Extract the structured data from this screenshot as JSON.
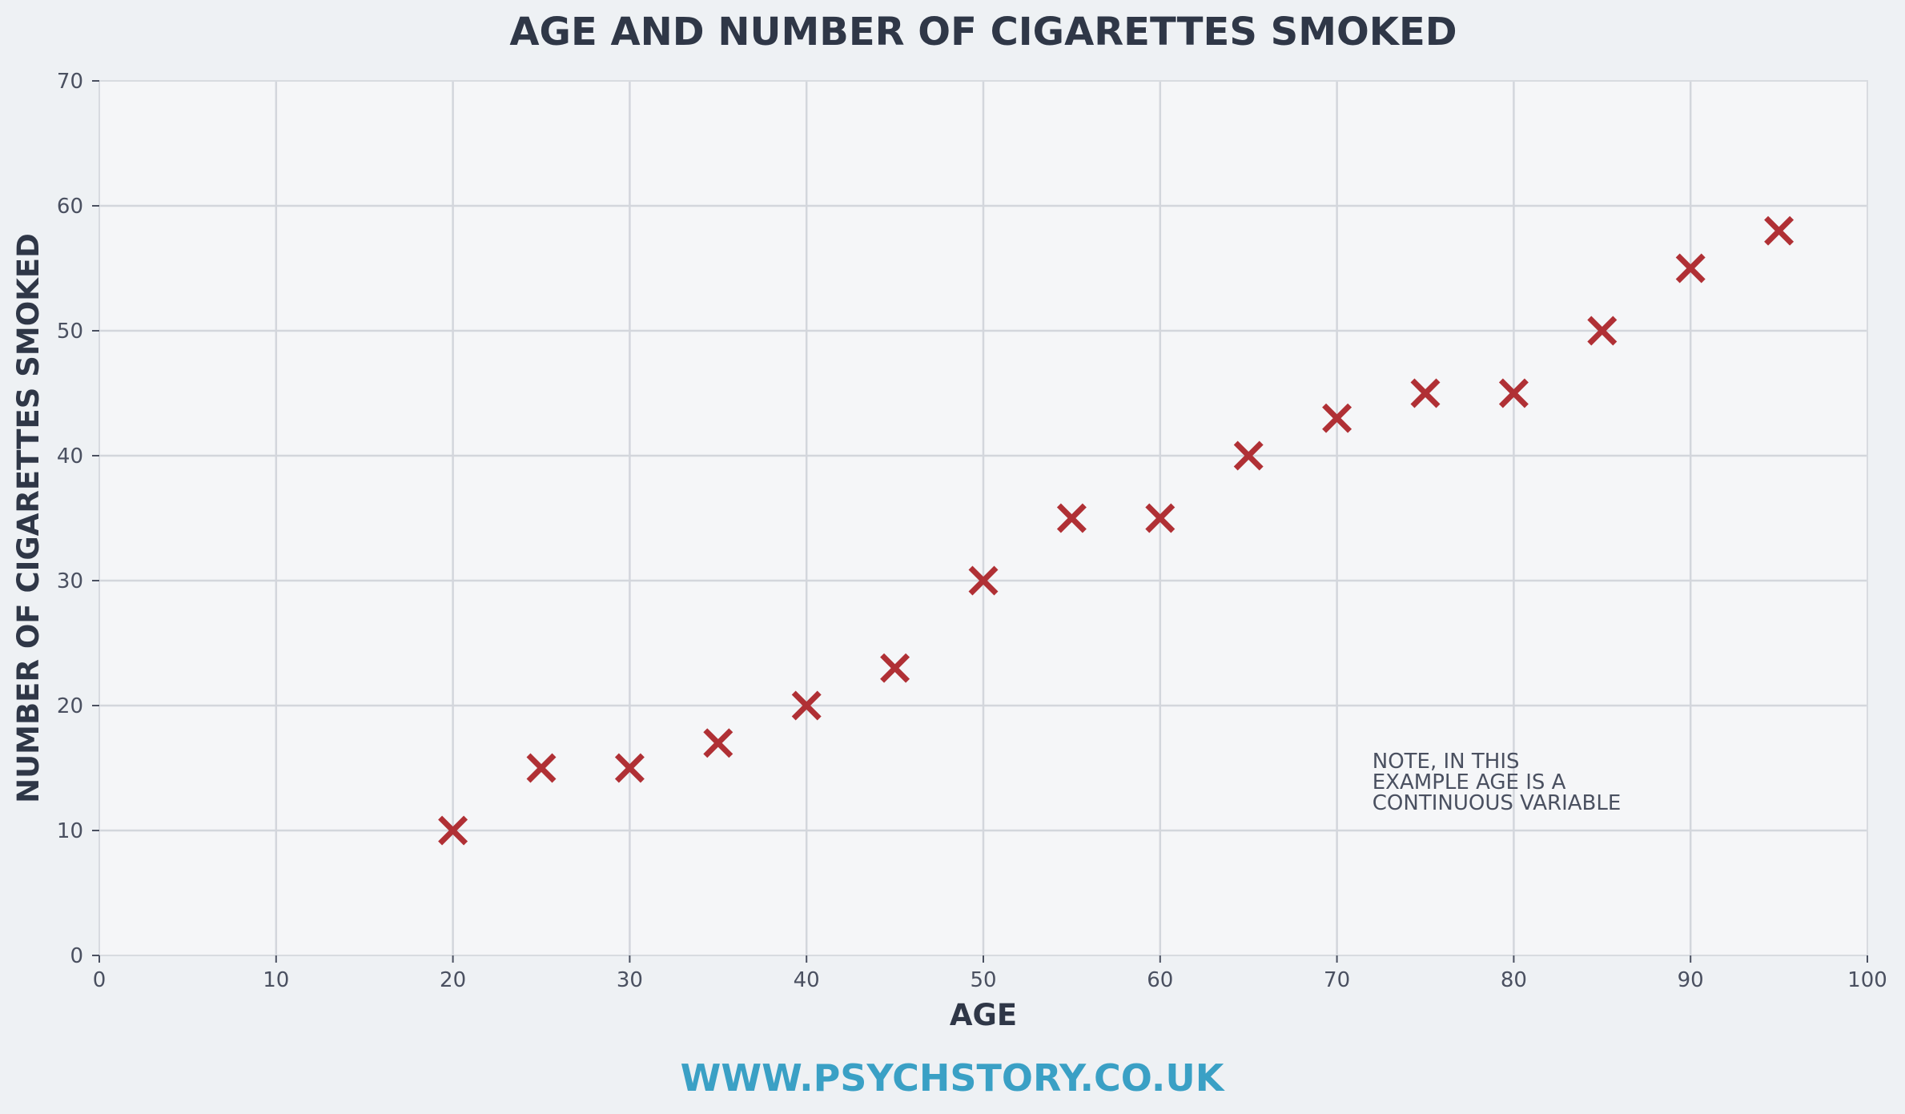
{
  "chart_data": {
    "type": "scatter",
    "title": "AGE AND NUMBER OF CIGARETTES SMOKED",
    "xlabel": "AGE",
    "ylabel": "NUMBER OF CIGARETTES SMOKED",
    "xlim": [
      0,
      100
    ],
    "ylim": [
      0,
      70
    ],
    "x_ticks": [
      "0",
      "10",
      "20",
      "30",
      "40",
      "50",
      "60",
      "70",
      "80",
      "90",
      "100"
    ],
    "y_ticks": [
      "0",
      "10",
      "20",
      "30",
      "40",
      "50",
      "60",
      "70"
    ],
    "grid": true,
    "marker": "x",
    "marker_color": "#b03035",
    "points": [
      {
        "x": 20,
        "y": 10
      },
      {
        "x": 25,
        "y": 15
      },
      {
        "x": 30,
        "y": 15
      },
      {
        "x": 35,
        "y": 17
      },
      {
        "x": 40,
        "y": 20
      },
      {
        "x": 45,
        "y": 23
      },
      {
        "x": 50,
        "y": 30
      },
      {
        "x": 55,
        "y": 35
      },
      {
        "x": 60,
        "y": 35
      },
      {
        "x": 65,
        "y": 40
      },
      {
        "x": 70,
        "y": 43
      },
      {
        "x": 75,
        "y": 45
      },
      {
        "x": 80,
        "y": 45
      },
      {
        "x": 85,
        "y": 50
      },
      {
        "x": 90,
        "y": 55
      },
      {
        "x": 95,
        "y": 58
      }
    ],
    "annotation": {
      "lines": [
        "NOTE, IN THIS",
        "EXAMPLE AGE IS A",
        "CONTINUOUS VARIABLE"
      ],
      "x": 72,
      "y": 15
    }
  },
  "footer": {
    "text": "WWW.PSYCHSTORY.CO.UK",
    "color": "#3aa0c5"
  },
  "colors": {
    "background": "#eef1f4",
    "plot_background": "#f5f6f8",
    "text": "#2f3747"
  }
}
